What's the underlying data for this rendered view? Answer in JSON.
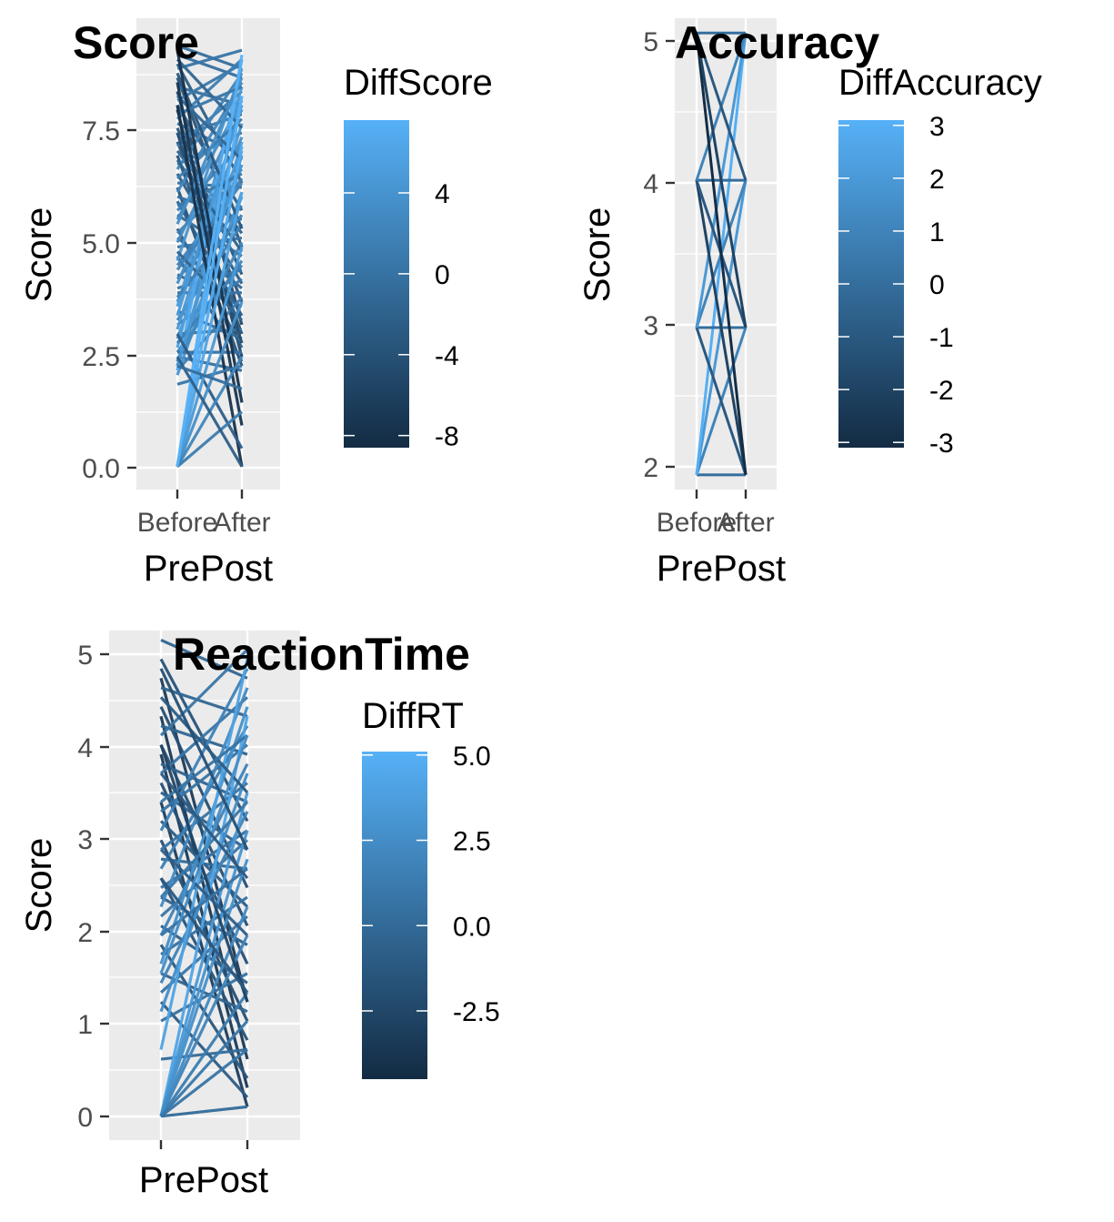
{
  "chart_data": [
    {
      "type": "line",
      "title": "Score",
      "xlabel": "PrePost",
      "ylabel": "Score",
      "categories": [
        "Before",
        "After"
      ],
      "ylim": [
        -0.5,
        9.8
      ],
      "yticks": [
        0.0,
        2.5,
        5.0,
        7.5
      ],
      "ytick_labels": [
        "0.0",
        "2.5",
        "5.0",
        "7.5"
      ],
      "grid": true,
      "legend": {
        "title": "DiffScore",
        "range": [
          -8.6,
          7.6
        ],
        "ticks": [
          4,
          0,
          -4,
          -8
        ],
        "tick_labels": [
          "4",
          "0",
          "-4",
          "-8"
        ],
        "placement": "right"
      },
      "pairs": [
        [
          9.2,
          8.7
        ],
        [
          9.0,
          8.5
        ],
        [
          8.8,
          6.2
        ],
        [
          8.7,
          9.1
        ],
        [
          8.5,
          4.8
        ],
        [
          8.3,
          7.9
        ],
        [
          8.2,
          3.1
        ],
        [
          8.0,
          8.8
        ],
        [
          7.9,
          5.6
        ],
        [
          7.8,
          2.4
        ],
        [
          7.6,
          8.9
        ],
        [
          7.5,
          6.8
        ],
        [
          7.4,
          4.2
        ],
        [
          7.2,
          7.7
        ],
        [
          7.1,
          3.6
        ],
        [
          7.0,
          8.2
        ],
        [
          6.9,
          5.1
        ],
        [
          6.8,
          2.9
        ],
        [
          6.6,
          7.3
        ],
        [
          6.5,
          8.6
        ],
        [
          6.4,
          4.0
        ],
        [
          6.2,
          6.1
        ],
        [
          6.1,
          2.2
        ],
        [
          6.0,
          8.4
        ],
        [
          5.9,
          5.4
        ],
        [
          5.8,
          3.3
        ],
        [
          5.6,
          7.0
        ],
        [
          5.5,
          4.6
        ],
        [
          5.4,
          8.0
        ],
        [
          5.2,
          2.6
        ],
        [
          5.1,
          6.5
        ],
        [
          5.0,
          3.9
        ],
        [
          4.9,
          7.8
        ],
        [
          4.8,
          5.0
        ],
        [
          4.6,
          2.3
        ],
        [
          4.5,
          8.7
        ],
        [
          4.4,
          6.3
        ],
        [
          4.2,
          3.5
        ],
        [
          4.1,
          5.7
        ],
        [
          4.0,
          7.2
        ],
        [
          3.9,
          4.3
        ],
        [
          3.8,
          3.8
        ],
        [
          3.6,
          6.9
        ],
        [
          3.5,
          8.3
        ],
        [
          3.4,
          2.8
        ],
        [
          3.2,
          5.3
        ],
        [
          3.1,
          4.1
        ],
        [
          3.0,
          7.5
        ],
        [
          2.9,
          3.0
        ],
        [
          2.8,
          6.6
        ],
        [
          2.6,
          8.1
        ],
        [
          2.5,
          4.5
        ],
        [
          2.4,
          2.1
        ],
        [
          2.3,
          5.9
        ],
        [
          2.2,
          7.1
        ],
        [
          2.1,
          3.7
        ],
        [
          2.0,
          6.0
        ],
        [
          2.1,
          8.9
        ],
        [
          2.3,
          4.9
        ],
        [
          2.5,
          2.5
        ],
        [
          8.9,
          7.4
        ],
        [
          8.6,
          5.2
        ],
        [
          8.1,
          6.7
        ],
        [
          7.7,
          8.3
        ],
        [
          7.3,
          2.7
        ],
        [
          6.7,
          4.7
        ],
        [
          6.3,
          7.6
        ],
        [
          5.7,
          6.4
        ],
        [
          5.3,
          8.5
        ],
        [
          4.7,
          3.2
        ],
        [
          4.3,
          6.2
        ],
        [
          3.7,
          5.5
        ],
        [
          3.3,
          7.9
        ],
        [
          2.7,
          4.4
        ],
        [
          2.2,
          6.8
        ],
        [
          9.1,
          1.4
        ],
        [
          8.4,
          0.9
        ],
        [
          7.9,
          0.0
        ],
        [
          2.9,
          0.4
        ],
        [
          1.8,
          2.2
        ],
        [
          0.0,
          8.1
        ],
        [
          0.0,
          7.0
        ],
        [
          0.0,
          6.0
        ],
        [
          0.0,
          4.8
        ],
        [
          0.0,
          3.6
        ],
        [
          0.0,
          2.4
        ],
        [
          0.0,
          1.2
        ],
        [
          0.0,
          9.0
        ],
        [
          2.4,
          0.0
        ],
        [
          2.2,
          1.7
        ]
      ]
    },
    {
      "type": "line",
      "title": "Accuracy",
      "xlabel": "PrePost",
      "ylabel": "Score",
      "categories": [
        "Before",
        "After"
      ],
      "ylim": [
        1.9,
        5.1
      ],
      "yticks": [
        2,
        3,
        4,
        5
      ],
      "ytick_labels": [
        "2",
        "3",
        "4",
        "5"
      ],
      "grid": true,
      "legend": {
        "title": "DiffAccuracy",
        "range": [
          -3.1,
          3.1
        ],
        "ticks": [
          3,
          2,
          1,
          0,
          -1,
          -2,
          -3
        ],
        "tick_labels": [
          "3",
          "2",
          "1",
          "0",
          "-1",
          "-2",
          "-3"
        ],
        "placement": "right"
      },
      "pairs": [
        [
          2,
          2
        ],
        [
          2,
          3
        ],
        [
          2,
          4
        ],
        [
          2,
          5
        ],
        [
          3,
          2
        ],
        [
          3,
          3
        ],
        [
          3,
          4
        ],
        [
          3,
          5
        ],
        [
          4,
          2
        ],
        [
          4,
          3
        ],
        [
          4,
          4
        ],
        [
          4,
          5
        ],
        [
          5,
          2
        ],
        [
          5,
          3
        ],
        [
          5,
          4
        ],
        [
          5,
          5
        ]
      ]
    },
    {
      "type": "line",
      "title": "ReactionTime",
      "xlabel": "PrePost",
      "ylabel": "Score",
      "categories": [],
      "ylim": [
        -0.25,
        5.1
      ],
      "yticks": [
        0,
        1,
        2,
        3,
        4,
        5
      ],
      "ytick_labels": [
        "0",
        "1",
        "2",
        "3",
        "4",
        "5"
      ],
      "grid": true,
      "legend": {
        "title": "DiffRT",
        "range": [
          -4.5,
          5.1
        ],
        "ticks": [
          5.0,
          2.5,
          0.0,
          -2.5
        ],
        "tick_labels": [
          "5.0",
          "2.5",
          "0.0",
          "-2.5"
        ],
        "placement": "right"
      },
      "pairs": [
        [
          5.0,
          4.6
        ],
        [
          4.8,
          3.1
        ],
        [
          4.6,
          1.2
        ],
        [
          4.5,
          4.2
        ],
        [
          4.3,
          2.4
        ],
        [
          4.2,
          0.6
        ],
        [
          4.1,
          3.8
        ],
        [
          4.0,
          4.9
        ],
        [
          3.9,
          2.0
        ],
        [
          3.8,
          0.3
        ],
        [
          3.7,
          3.3
        ],
        [
          3.6,
          4.4
        ],
        [
          3.5,
          1.6
        ],
        [
          3.4,
          2.8
        ],
        [
          3.3,
          0.1
        ],
        [
          3.2,
          3.9
        ],
        [
          3.1,
          2.2
        ],
        [
          3.0,
          4.7
        ],
        [
          2.9,
          1.0
        ],
        [
          2.8,
          3.5
        ],
        [
          2.7,
          2.6
        ],
        [
          2.6,
          4.1
        ],
        [
          2.5,
          0.8
        ],
        [
          2.4,
          3.0
        ],
        [
          2.3,
          1.8
        ],
        [
          2.2,
          4.5
        ],
        [
          2.1,
          2.9
        ],
        [
          2.0,
          1.4
        ],
        [
          1.9,
          3.7
        ],
        [
          1.8,
          0.4
        ],
        [
          1.7,
          2.3
        ],
        [
          1.6,
          4.3
        ],
        [
          1.5,
          1.1
        ],
        [
          1.4,
          3.2
        ],
        [
          1.3,
          2.1
        ],
        [
          1.2,
          0.2
        ],
        [
          1.1,
          3.6
        ],
        [
          1.0,
          1.5
        ],
        [
          0.7,
          4.8
        ],
        [
          0.6,
          0.7
        ],
        [
          0.0,
          4.2
        ],
        [
          0.0,
          3.4
        ],
        [
          0.0,
          2.7
        ],
        [
          0.0,
          1.9
        ],
        [
          0.0,
          1.3
        ],
        [
          0.0,
          0.7
        ],
        [
          0.0,
          0.1
        ],
        [
          0.0,
          3.0
        ],
        [
          0.0,
          2.2
        ],
        [
          0.0,
          1.0
        ],
        [
          4.4,
          3.4
        ],
        [
          3.9,
          1.2
        ],
        [
          3.3,
          4.0
        ],
        [
          2.8,
          1.9
        ],
        [
          2.3,
          3.3
        ],
        [
          1.9,
          2.6
        ],
        [
          1.5,
          4.0
        ],
        [
          4.7,
          2.8
        ],
        [
          3.6,
          2.5
        ],
        [
          2.5,
          1.3
        ]
      ]
    }
  ]
}
